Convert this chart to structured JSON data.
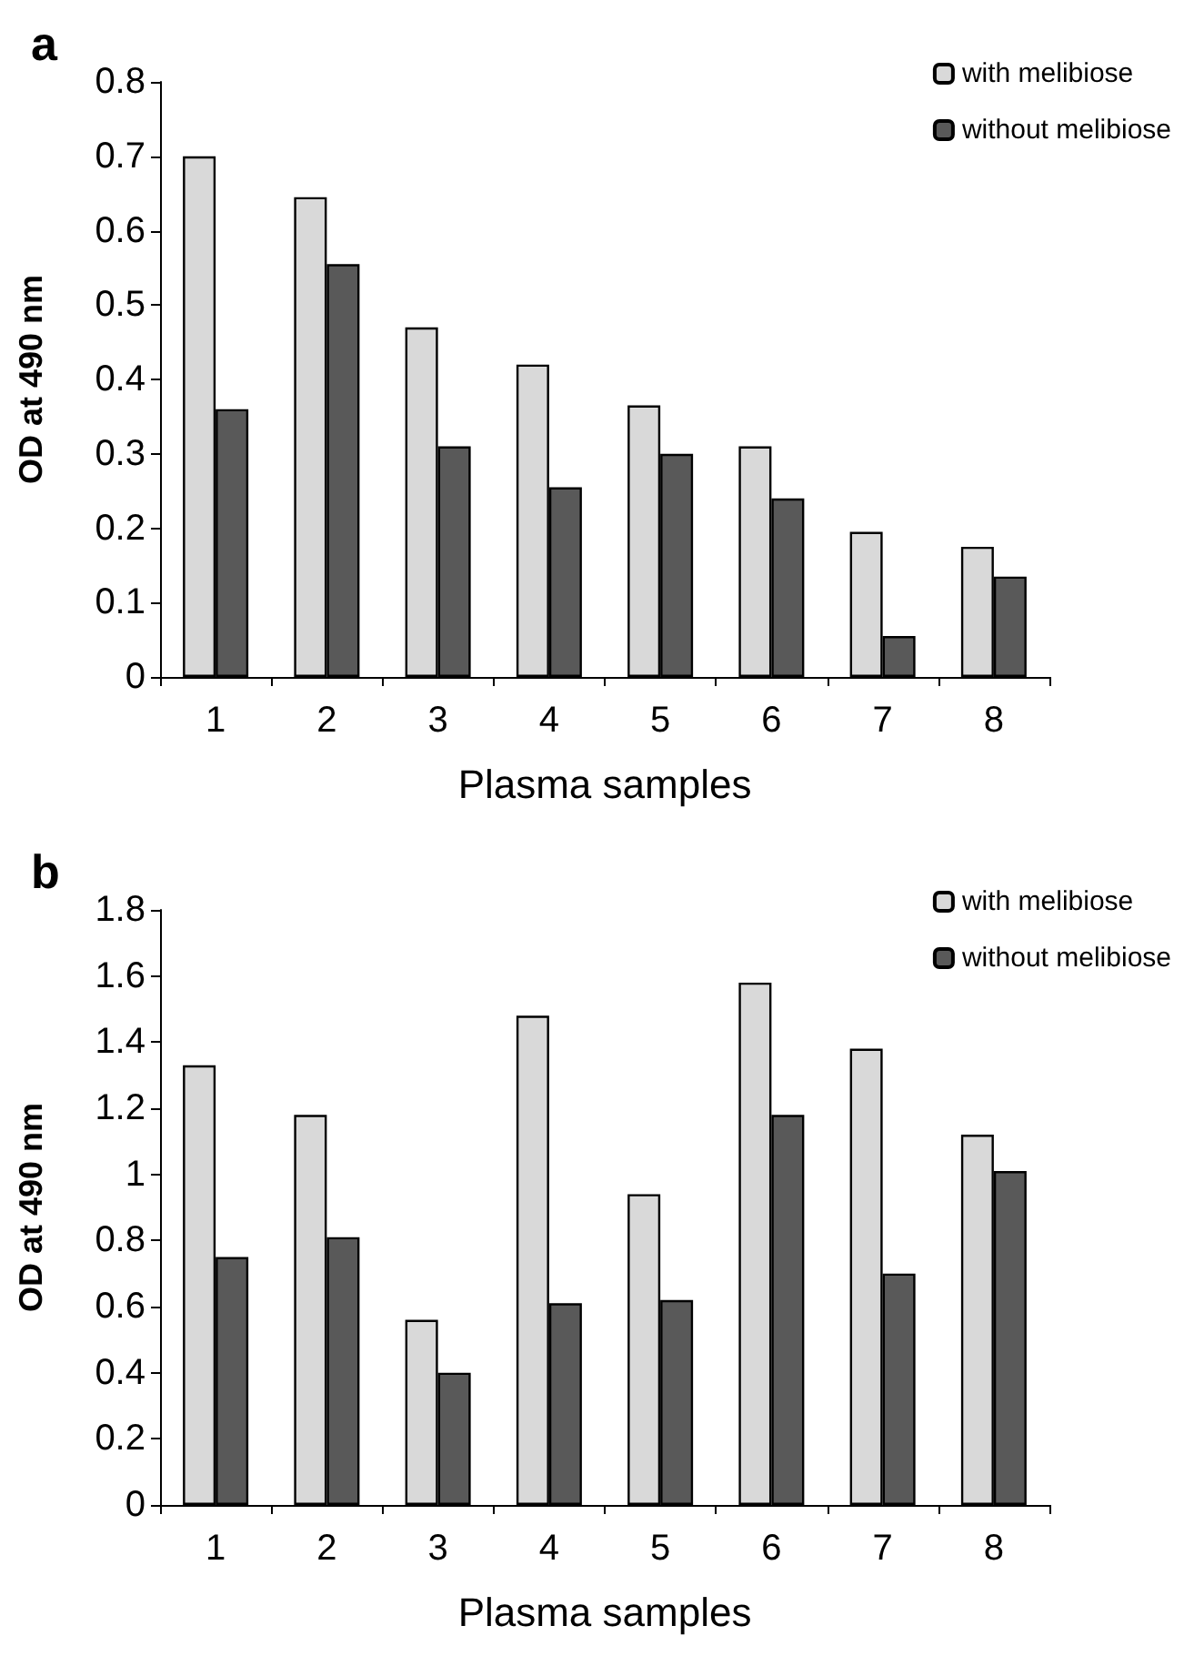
{
  "chart_data": [
    {
      "type": "bar",
      "title": "a",
      "xlabel": "Plasma samples",
      "ylabel": "OD at 490 nm",
      "categories": [
        "1",
        "2",
        "3",
        "4",
        "5",
        "6",
        "7",
        "8"
      ],
      "series": [
        {
          "name": "with melibiose",
          "color": "#d9d9d9",
          "values": [
            0.7,
            0.645,
            0.47,
            0.42,
            0.365,
            0.31,
            0.195,
            0.175
          ]
        },
        {
          "name": "without melibiose",
          "color": "#595959",
          "values": [
            0.36,
            0.555,
            0.31,
            0.255,
            0.3,
            0.24,
            0.055,
            0.135
          ]
        }
      ],
      "ylim": [
        0,
        0.8
      ],
      "yticks": [
        0,
        0.1,
        0.2,
        0.3,
        0.4,
        0.5,
        0.6,
        0.7,
        0.8
      ],
      "grid": false,
      "legend": "top right"
    },
    {
      "type": "bar",
      "title": "b",
      "xlabel": "Plasma samples",
      "ylabel": "OD at 490 nm",
      "categories": [
        "1",
        "2",
        "3",
        "4",
        "5",
        "6",
        "7",
        "8"
      ],
      "series": [
        {
          "name": "with melibiose",
          "color": "#d9d9d9",
          "values": [
            1.33,
            1.18,
            0.56,
            1.48,
            0.94,
            1.58,
            1.38,
            1.12
          ]
        },
        {
          "name": "without melibiose",
          "color": "#595959",
          "values": [
            0.75,
            0.81,
            0.4,
            0.61,
            0.62,
            1.18,
            0.7,
            1.01
          ]
        }
      ],
      "ylim": [
        0,
        1.8
      ],
      "yticks": [
        0,
        0.2,
        0.4,
        0.6,
        0.8,
        1,
        1.2,
        1.4,
        1.6,
        1.8
      ],
      "grid": false,
      "legend": "top right"
    }
  ]
}
